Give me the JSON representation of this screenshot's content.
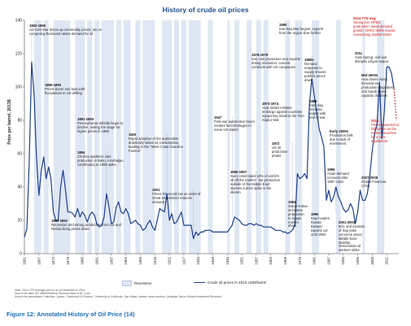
{
  "title": "History of crude oil prices",
  "caption": "Figure 12: Annotated History of Oil Price (14)",
  "notes": [
    "Note: 2014 YTD average price is as of December 9, 2014",
    "Source for data: BP, NBER/Federal Reserve Bank of St. Louis",
    "Source for annotations: Hamilton, James. \"Historical Oil Shocks,\" University of California, San Diego; various news sources; Goldman Sachs Global Investment Research."
  ],
  "colors": {
    "line": "#1d3f8f",
    "recession": "#dfe7f4",
    "title": "#1f4e8c",
    "highlight": "#d0201d",
    "caption": "#1f6fb5"
  },
  "chart_data": {
    "type": "line",
    "title": "History of crude oil prices",
    "xlabel": "",
    "ylabel": "Price per barrel, 2013$",
    "ylim": [
      0,
      140
    ],
    "yticks": [
      0,
      20,
      40,
      60,
      80,
      100,
      120,
      140
    ],
    "xlim": [
      1861,
      2016
    ],
    "xticks": [
      1861,
      1867,
      1873,
      1879,
      1885,
      1891,
      1897,
      1903,
      1909,
      1915,
      1921,
      1927,
      1933,
      1939,
      1945,
      1951,
      1957,
      1963,
      1969,
      1975,
      1981,
      1987,
      1993,
      1999,
      2005,
      2011
    ],
    "xtick_labels": [
      "1861",
      "1867",
      "1873",
      "1879",
      "1885",
      "1891",
      "1897",
      "1903",
      "1909",
      "1915",
      "1921",
      "1927",
      "1933",
      "1939",
      "1945",
      "1951",
      "1957",
      "1963",
      "1969",
      "1975",
      "1981",
      "1987",
      "1993",
      "1999",
      "2005",
      "2011"
    ],
    "grid": false,
    "legend": {
      "placement": "bottom",
      "entries": [
        "Recession",
        "Crude oil prices in 2013 USD/barrel"
      ]
    },
    "series": [
      {
        "name": "Crude oil prices in 2013 USD/barrel",
        "x": [
          1861,
          1862,
          1863,
          1864,
          1865,
          1866,
          1867,
          1868,
          1869,
          1870,
          1871,
          1872,
          1873,
          1874,
          1875,
          1876,
          1877,
          1878,
          1879,
          1880,
          1881,
          1882,
          1883,
          1884,
          1885,
          1886,
          1887,
          1888,
          1889,
          1890,
          1891,
          1892,
          1893,
          1894,
          1895,
          1896,
          1897,
          1898,
          1899,
          1900,
          1901,
          1902,
          1903,
          1904,
          1905,
          1906,
          1907,
          1908,
          1909,
          1910,
          1911,
          1912,
          1913,
          1914,
          1915,
          1916,
          1917,
          1918,
          1919,
          1920,
          1921,
          1922,
          1923,
          1924,
          1925,
          1926,
          1927,
          1928,
          1929,
          1930,
          1931,
          1932,
          1933,
          1934,
          1935,
          1936,
          1937,
          1938,
          1939,
          1940,
          1941,
          1942,
          1943,
          1944,
          1945,
          1946,
          1947,
          1948,
          1949,
          1950,
          1951,
          1952,
          1953,
          1954,
          1955,
          1956,
          1957,
          1958,
          1959,
          1960,
          1961,
          1962,
          1963,
          1964,
          1965,
          1966,
          1967,
          1968,
          1969,
          1970,
          1971,
          1972,
          1973,
          1974,
          1975,
          1976,
          1977,
          1978,
          1979,
          1980,
          1981,
          1982,
          1983,
          1984,
          1985,
          1986,
          1987,
          1988,
          1989,
          1990,
          1991,
          1992,
          1993,
          1994,
          1995,
          1996,
          1997,
          1998,
          1999,
          2000,
          2001,
          2002,
          2003,
          2004,
          2005,
          2006,
          2007,
          2008,
          2009,
          2010,
          2011,
          2012,
          2013,
          2014
        ],
        "values": [
          10,
          15,
          55,
          115,
          95,
          58,
          35,
          50,
          58,
          45,
          52,
          45,
          25,
          20,
          20,
          40,
          50,
          38,
          25,
          25,
          24,
          22,
          27,
          22,
          25,
          23,
          19,
          23,
          25,
          23,
          18,
          16,
          17,
          22,
          36,
          28,
          18,
          19,
          28,
          31,
          25,
          24,
          27,
          24,
          18,
          19,
          20,
          18,
          17,
          14,
          15,
          18,
          20,
          16,
          14,
          20,
          27,
          26,
          25,
          36,
          20,
          24,
          18,
          19,
          22,
          25,
          17,
          17,
          17,
          17,
          9,
          13,
          11,
          13,
          13,
          14,
          14,
          14,
          13,
          13,
          13,
          13,
          13,
          13,
          13,
          15,
          17,
          22,
          21,
          20,
          18,
          17,
          17,
          18,
          18,
          17,
          18,
          17,
          17,
          16,
          16,
          16,
          16,
          15,
          14,
          14,
          14,
          13,
          13,
          12,
          13,
          14,
          17,
          48,
          45,
          46,
          48,
          45,
          90,
          105,
          95,
          85,
          75,
          70,
          64,
          32,
          38,
          31,
          34,
          40,
          34,
          31,
          27,
          25,
          26,
          30,
          27,
          18,
          25,
          38,
          32,
          32,
          36,
          47,
          62,
          72,
          78,
          103,
          69,
          85,
          112,
          112,
          108,
          99
        ],
        "style": "line"
      }
    ],
    "recessions": [
      [
        1865,
        1867
      ],
      [
        1869,
        1870
      ],
      [
        1873,
        1879
      ],
      [
        1882,
        1885
      ],
      [
        1887,
        1888
      ],
      [
        1890,
        1891
      ],
      [
        1893,
        1894
      ],
      [
        1895,
        1897
      ],
      [
        1899,
        1900
      ],
      [
        1902,
        1904
      ],
      [
        1907,
        1908
      ],
      [
        1910,
        1912
      ],
      [
        1913,
        1914
      ],
      [
        1918,
        1919
      ],
      [
        1920,
        1921
      ],
      [
        1923,
        1924
      ],
      [
        1926,
        1927
      ],
      [
        1929,
        1933
      ],
      [
        1937,
        1938
      ],
      [
        1945,
        1945
      ],
      [
        1948,
        1949
      ],
      [
        1953,
        1954
      ],
      [
        1957,
        1958
      ],
      [
        1960,
        1961
      ],
      [
        1969,
        1970
      ],
      [
        1973,
        1975
      ],
      [
        1980,
        1980
      ],
      [
        1981,
        1982
      ],
      [
        1990,
        1991
      ],
      [
        2001,
        2001
      ],
      [
        2007,
        2009
      ]
    ]
  },
  "annotations": [
    {
      "id": "a1862",
      "year": "1862-1865",
      "text": "US Civil War drives up commodity prices; tax on competing illuminant raises demand for oil",
      "red": false
    },
    {
      "id": "a1865",
      "year": "1865-1890",
      "text": "Prices boom and bust with fluctuations in US drilling",
      "red": false
    },
    {
      "id": "a1890",
      "year": "1890-1892",
      "text": "Recession and strong production from US and Russia bring prices down",
      "red": false
    },
    {
      "id": "a1891",
      "year": "1891-1894",
      "text": "Pennsylvania oilfields begin to decline, setting the stage for higher prices in 1895",
      "red": false
    },
    {
      "id": "a1894",
      "year": "1894",
      "text": "Cholera epidemic cuts production in Baku, Azerbaijan, contributing to 1895 spike",
      "red": false
    },
    {
      "id": "a1920",
      "year": "1920",
      "text": "Rapid adoption of the automobile drastically raises oil consumption, leading to the \"West Coast Gasoline Famine\"",
      "red": false
    },
    {
      "id": "a1931",
      "year": "1931",
      "text": "Prices hit record low as onset of Great Depression reduces demand",
      "red": false
    },
    {
      "id": "a1947",
      "year": "1947",
      "text": "Post-war automotive boom creates fuel shortages in some US states",
      "red": false
    },
    {
      "id": "a1956",
      "year": "1956-1957",
      "text": "Suez crisis takes 10% of world's oil off the market - but production outside of the Middle East stymies a price spike in the interim",
      "red": false
    },
    {
      "id": "a1972",
      "year": "1972",
      "text": "US oil production peaks",
      "red": false
    },
    {
      "id": "a1973",
      "year": "1973-1974",
      "text": "Arab states institute embargo against countries supporting Israel in the Yom Kippur War",
      "red": false
    },
    {
      "id": "a1978",
      "year": "1978-1979",
      "text": "Iran cuts production and exports during revolution; cancels contracts with US companies",
      "red": false
    },
    {
      "id": "a1980",
      "year": "1980",
      "text": "Iran-Iraq War begins; exports from the region slow further",
      "red": false
    },
    {
      "id": "a1980s",
      "year": "1980s",
      "text": "Demand response to supply shocks pushes prices down",
      "red": false
    },
    {
      "id": "a1984",
      "year": "1984",
      "text": "Saudi Arabia increases production to regain market share",
      "red": false
    },
    {
      "id": "a1988",
      "year": "1988",
      "text": "Iran, Iraq increase output with end of war",
      "red": false
    },
    {
      "id": "a1990",
      "year": "1990",
      "text": "Iraq invades Kuwait. Kuwaiti exports cut until 1994",
      "red": false
    },
    {
      "id": "a1999",
      "year": "1999",
      "text": "Asian demand recovers after 1997 crisis",
      "red": false
    },
    {
      "id": "a2000s",
      "year": "Early 2000s",
      "text": "Production falls due to lack of investment",
      "red": false
    },
    {
      "id": "a2001",
      "year": "2001-2003",
      "text": "9/11 and invasion of Iraq raise concerns about Middle East stability; Venezuelan oil workers strike",
      "red": false
    },
    {
      "id": "a2007",
      "year": "2007-2008",
      "text": "Global Financial Crisis",
      "red": false
    },
    {
      "id": "amid2000",
      "year": "Mid-2000s",
      "text": "Asia drives rising demand as production stagnates and Saudi spare capacity declines",
      "red": false
    },
    {
      "id": "a2011",
      "year": "2011",
      "text": "Arab Spring; civil war disrupts Libyan output",
      "red": false
    },
    {
      "id": "a2014",
      "year": "2014 YTD avg.",
      "text": "Strong non-OPEC production; weak demand growth; OPEC shifts toward maintaining market share",
      "red": true
    },
    {
      "id": "a2015",
      "year": "2015",
      "text": "Prices expected to fall further as the market searches for a new equilibrium.",
      "red": true
    }
  ]
}
